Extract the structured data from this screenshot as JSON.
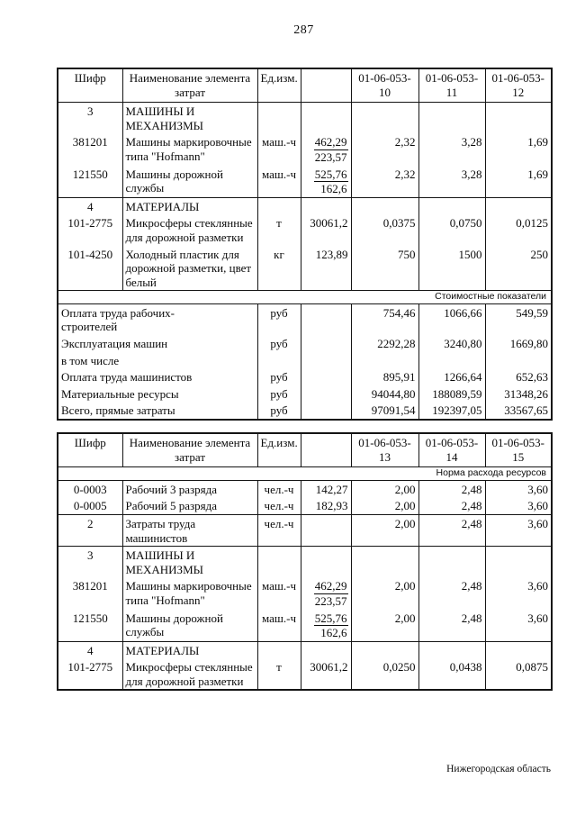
{
  "page": {
    "number": "287",
    "footer": "Нижегородская область"
  },
  "tables": [
    {
      "name": "norms-table-01-06-053-10-12",
      "header": {
        "code": "Шифр",
        "name": "Наименование элемента\nзатрат",
        "unit": "Ед.изм.",
        "blank": "",
        "cols": [
          "01-06-053-\n10",
          "01-06-053-\n11",
          "01-06-053-\n12"
        ]
      },
      "rows": [
        {
          "code": "3",
          "code_bold": true,
          "name_bold": true,
          "name": "МАШИНЫ И\nМЕХАНИЗМЫ",
          "unit": "",
          "qty": "",
          "vals": [
            "",
            "",
            ""
          ]
        },
        {
          "code": "381201",
          "name": "Машины маркировочные\nтипа \"Hofmann\"",
          "unit": "маш.-ч",
          "qty_num": "462,29",
          "qty_den": "223,57",
          "vals": [
            "2,32",
            "3,28",
            "1,69"
          ]
        },
        {
          "code": "121550",
          "name": "Машины дорожной\nслужбы",
          "unit": "маш.-ч",
          "qty_num": "525,76",
          "qty_den": "162,6",
          "vals": [
            "2,32",
            "3,28",
            "1,69"
          ]
        },
        {
          "code": "4",
          "code_bold": true,
          "name_bold": true,
          "rule": true,
          "name": "МАТЕРИАЛЫ",
          "unit": "",
          "qty": "",
          "vals": [
            "",
            "",
            ""
          ]
        },
        {
          "code": "101-2775",
          "name": "Микросферы стеклянные\nдля дорожной разметки",
          "unit": "т",
          "qty": "30061,2",
          "vals": [
            "0,0375",
            "0,0750",
            "0,0125"
          ]
        },
        {
          "code": "101-4250",
          "name": "Холодный пластик для\nдорожной разметки, цвет\nбелый",
          "unit": "кг",
          "qty": "123,89",
          "vals": [
            "750",
            "1500",
            "250"
          ]
        },
        {
          "band": "Стоимостные показатели",
          "rule": true
        },
        {
          "kind": "cost",
          "label": "Оплата труда рабочих-\nстроителей",
          "bold": true,
          "unit": "руб",
          "qty": "",
          "vals": [
            "754,46",
            "1066,66",
            "549,59"
          ]
        },
        {
          "kind": "cost",
          "label": "Эксплуатация машин",
          "bold": true,
          "unit": "руб",
          "qty": "",
          "vals": [
            "2292,28",
            "3240,80",
            "1669,80"
          ]
        },
        {
          "kind": "cost",
          "label": "в том числе",
          "unit": "",
          "qty": "",
          "vals": [
            "",
            "",
            ""
          ]
        },
        {
          "kind": "cost",
          "label": "Оплата труда машинистов",
          "unit": "руб",
          "qty": "",
          "vals": [
            "895,91",
            "1266,64",
            "652,63"
          ]
        },
        {
          "kind": "cost",
          "label": "Материальные ресурсы",
          "bold": true,
          "unit": "руб",
          "qty": "",
          "vals": [
            "94044,80",
            "188089,59",
            "31348,26"
          ]
        },
        {
          "kind": "cost",
          "label": "Всего, прямые затраты",
          "bold": true,
          "unit": "руб",
          "qty": "",
          "vals": [
            "97091,54",
            "192397,05",
            "33567,65"
          ]
        }
      ]
    },
    {
      "name": "norms-table-01-06-053-13-15",
      "header": {
        "code": "Шифр",
        "name": "Наименование элемента\nзатрат",
        "unit": "Ед.изм.",
        "blank": "",
        "cols": [
          "01-06-053-\n13",
          "01-06-053-\n14",
          "01-06-053-\n15"
        ]
      },
      "rows": [
        {
          "band": "Норма расхода ресурсов"
        },
        {
          "code": "0-0003",
          "name": "Рабочий 3 разряда",
          "unit": "чел.-ч",
          "qty": "142,27",
          "vals": [
            "2,00",
            "2,48",
            "3,60"
          ]
        },
        {
          "code": "0-0005",
          "name": "Рабочий 5 разряда",
          "unit": "чел.-ч",
          "qty": "182,93",
          "vals": [
            "2,00",
            "2,48",
            "3,60"
          ]
        },
        {
          "code": "2",
          "code_bold": true,
          "rule": true,
          "name": "Затраты труда\nмашинистов",
          "unit": "чел.-ч",
          "qty": "",
          "vals": [
            "2,00",
            "2,48",
            "3,60"
          ]
        },
        {
          "code": "3",
          "code_bold": true,
          "name_bold": true,
          "rule": true,
          "name": "МАШИНЫ И\nМЕХАНИЗМЫ",
          "unit": "",
          "qty": "",
          "vals": [
            "",
            "",
            ""
          ]
        },
        {
          "code": "381201",
          "name": "Машины маркировочные\nтипа \"Hofmann\"",
          "unit": "маш.-ч",
          "qty_num": "462,29",
          "qty_den": "223,57",
          "vals": [
            "2,00",
            "2,48",
            "3,60"
          ]
        },
        {
          "code": "121550",
          "name": "Машины дорожной\nслужбы",
          "unit": "маш.-ч",
          "qty_num": "525,76",
          "qty_den": "162,6",
          "vals": [
            "2,00",
            "2,48",
            "3,60"
          ]
        },
        {
          "code": "4",
          "code_bold": true,
          "name_bold": true,
          "rule": true,
          "name": "МАТЕРИАЛЫ",
          "unit": "",
          "qty": "",
          "vals": [
            "",
            "",
            ""
          ]
        },
        {
          "code": "101-2775",
          "name": "Микросферы стеклянные\nдля дорожной разметки",
          "unit": "т",
          "qty": "30061,2",
          "vals": [
            "0,0250",
            "0,0438",
            "0,0875"
          ]
        }
      ]
    }
  ]
}
